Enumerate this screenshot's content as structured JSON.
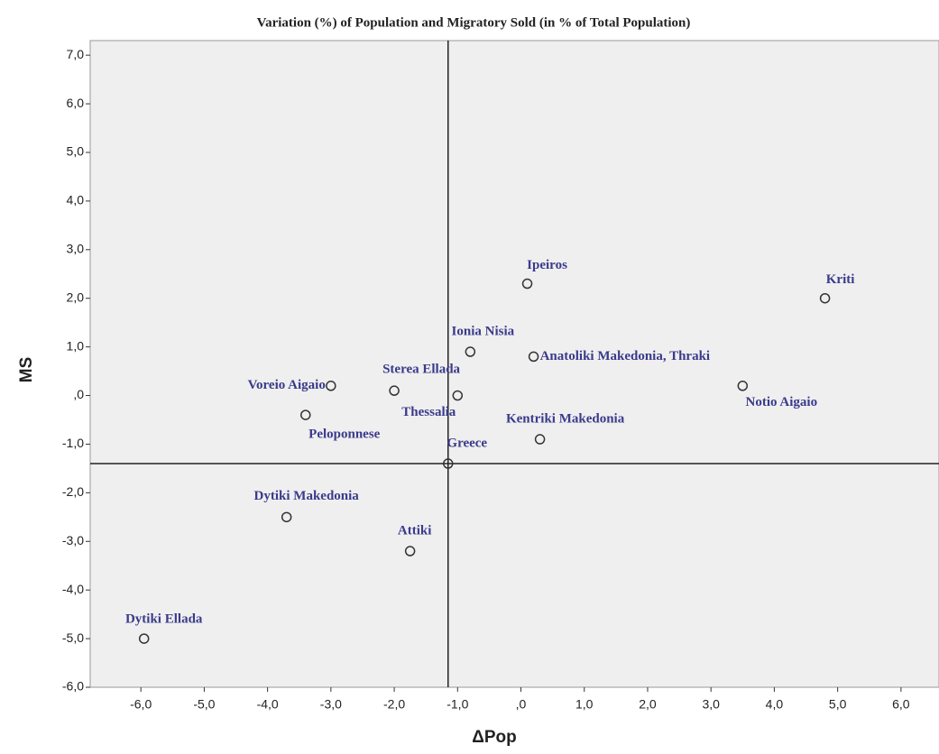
{
  "chart_data": {
    "type": "scatter",
    "title": "Variation (%) of Population and Migratory Sold (in % of Total Population)",
    "x_label": "ΔPop",
    "y_label": "MS",
    "series": [
      {
        "color": "#333333",
        "label_color": "#3a3a8c",
        "labels": [
          "Ipeiros",
          "Kriti",
          "Ionia Nisia",
          "Anatoliki Makedonia, Thraki",
          "Voreio Aigaio",
          "Sterea Ellada",
          "Thessalia",
          "Notio Aigaio",
          "Peloponnese",
          "Kentriki Makedonia",
          "Greece",
          "Dytiki Makedonia",
          "Attiki",
          "Dytiki Ellada"
        ],
        "x": [
          0.1,
          4.8,
          -0.8,
          0.2,
          -3.0,
          -2.0,
          -1.0,
          3.5,
          -3.4,
          0.3,
          -1.15,
          -3.7,
          -1.75,
          -5.95
        ],
        "values": [
          2.3,
          2.0,
          0.9,
          0.8,
          0.2,
          0.1,
          0.0,
          0.2,
          -0.4,
          -0.9,
          -1.4,
          -2.5,
          -3.2,
          -5.0
        ]
      }
    ],
    "reference_lines": {
      "x": -1.15,
      "y": -1.4
    },
    "xlim": [
      -6.8,
      6.6
    ],
    "ylim": [
      -6.0,
      7.3
    ],
    "xticks": [
      {
        "value": -6,
        "label": "-6,0"
      },
      {
        "value": -5,
        "label": "-5,0"
      },
      {
        "value": -4,
        "label": "-4,0"
      },
      {
        "value": -3,
        "label": "-3,0"
      },
      {
        "value": -2,
        "label": "-2,0"
      },
      {
        "value": -1,
        "label": "-1,0"
      },
      {
        "value": 0,
        "label": ",0"
      },
      {
        "value": 1,
        "label": "1,0"
      },
      {
        "value": 2,
        "label": "2,0"
      },
      {
        "value": 3,
        "label": "3,0"
      },
      {
        "value": 4,
        "label": "4,0"
      },
      {
        "value": 5,
        "label": "5,0"
      },
      {
        "value": 6,
        "label": "6,0"
      }
    ],
    "yticks": [
      {
        "value": -6,
        "label": "-6,0"
      },
      {
        "value": -5,
        "label": "-5,0"
      },
      {
        "value": -4,
        "label": "-4,0"
      },
      {
        "value": -3,
        "label": "-3,0"
      },
      {
        "value": -2,
        "label": "-2,0"
      },
      {
        "value": -1,
        "label": "-1,0"
      },
      {
        "value": 0,
        "label": ",0"
      },
      {
        "value": 1,
        "label": "1,0"
      },
      {
        "value": 2,
        "label": "2,0"
      },
      {
        "value": 3,
        "label": "3,0"
      },
      {
        "value": 4,
        "label": "4,0"
      },
      {
        "value": 5,
        "label": "5,0"
      },
      {
        "value": 6,
        "label": "6,0"
      },
      {
        "value": 7,
        "label": "7,0"
      }
    ]
  }
}
